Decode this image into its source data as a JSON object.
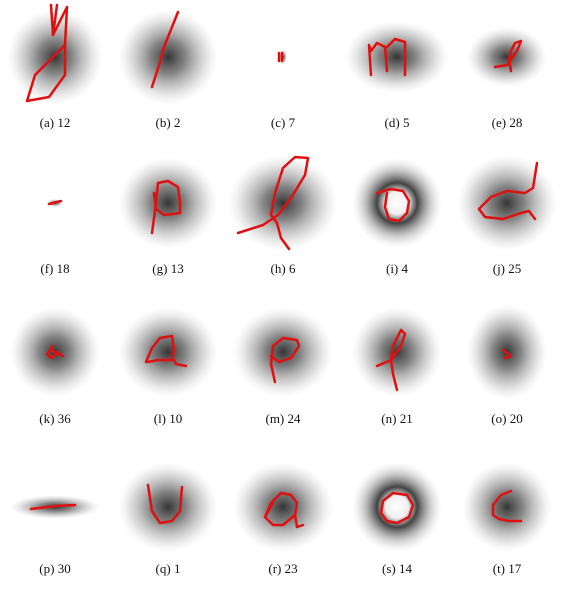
{
  "figure": {
    "panels": [
      {
        "caption": "(a) 12"
      },
      {
        "caption": "(b) 2"
      },
      {
        "caption": "(c) 7"
      },
      {
        "caption": "(d) 5"
      },
      {
        "caption": "(e) 28"
      },
      {
        "caption": "(f) 18"
      },
      {
        "caption": "(g) 13"
      },
      {
        "caption": "(h) 6"
      },
      {
        "caption": "(i) 4"
      },
      {
        "caption": "(j) 25"
      },
      {
        "caption": "(k) 36"
      },
      {
        "caption": "(l) 10"
      },
      {
        "caption": "(m) 24"
      },
      {
        "caption": "(n) 21"
      },
      {
        "caption": "(o) 20"
      },
      {
        "caption": "(p) 30"
      },
      {
        "caption": "(q) 1"
      },
      {
        "caption": "(r) 23"
      },
      {
        "caption": "(s) 14"
      },
      {
        "caption": "(t) 17"
      }
    ]
  }
}
